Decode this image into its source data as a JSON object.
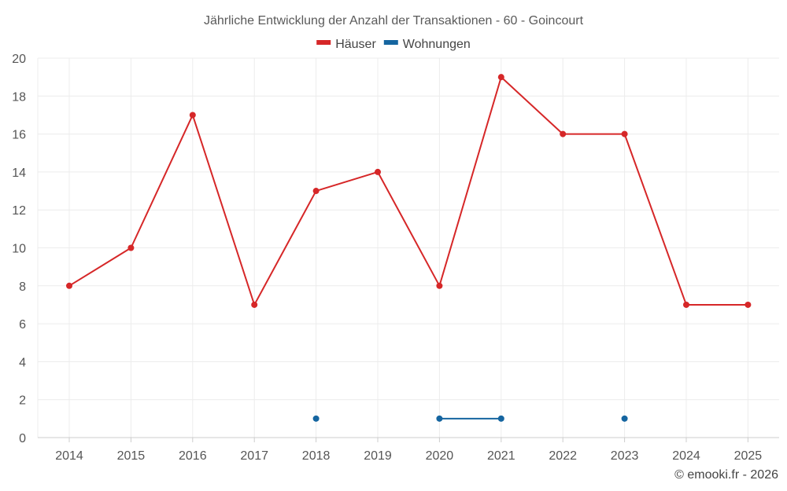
{
  "chart_data": {
    "type": "line",
    "title": "Jährliche Entwicklung der Anzahl der Transaktionen - 60 - Goincourt",
    "x": [
      2014,
      2015,
      2016,
      2017,
      2018,
      2019,
      2020,
      2021,
      2022,
      2023,
      2024,
      2025
    ],
    "x_tick_labels": [
      "2014",
      "2015",
      "2016",
      "2017",
      "2018",
      "2019",
      "2020",
      "2021",
      "2022",
      "2023",
      "2024",
      "2025"
    ],
    "ylim": [
      0,
      20
    ],
    "y_ticks": [
      0,
      2,
      4,
      6,
      8,
      10,
      12,
      14,
      16,
      18,
      20
    ],
    "y_tick_labels": [
      "0",
      "2",
      "4",
      "6",
      "8",
      "10",
      "12",
      "14",
      "16",
      "18",
      "20"
    ],
    "grid": true,
    "legend_position": "top-center",
    "series": [
      {
        "name": "Häuser",
        "color": "#d62728",
        "values": [
          8,
          10,
          17,
          7,
          13,
          14,
          8,
          19,
          16,
          16,
          7,
          7
        ]
      },
      {
        "name": "Wohnungen",
        "color": "#1565a0",
        "values": [
          null,
          null,
          null,
          null,
          1,
          null,
          1,
          1,
          null,
          1,
          null,
          null
        ]
      }
    ]
  },
  "credit": "© emooki.fr - 2026"
}
